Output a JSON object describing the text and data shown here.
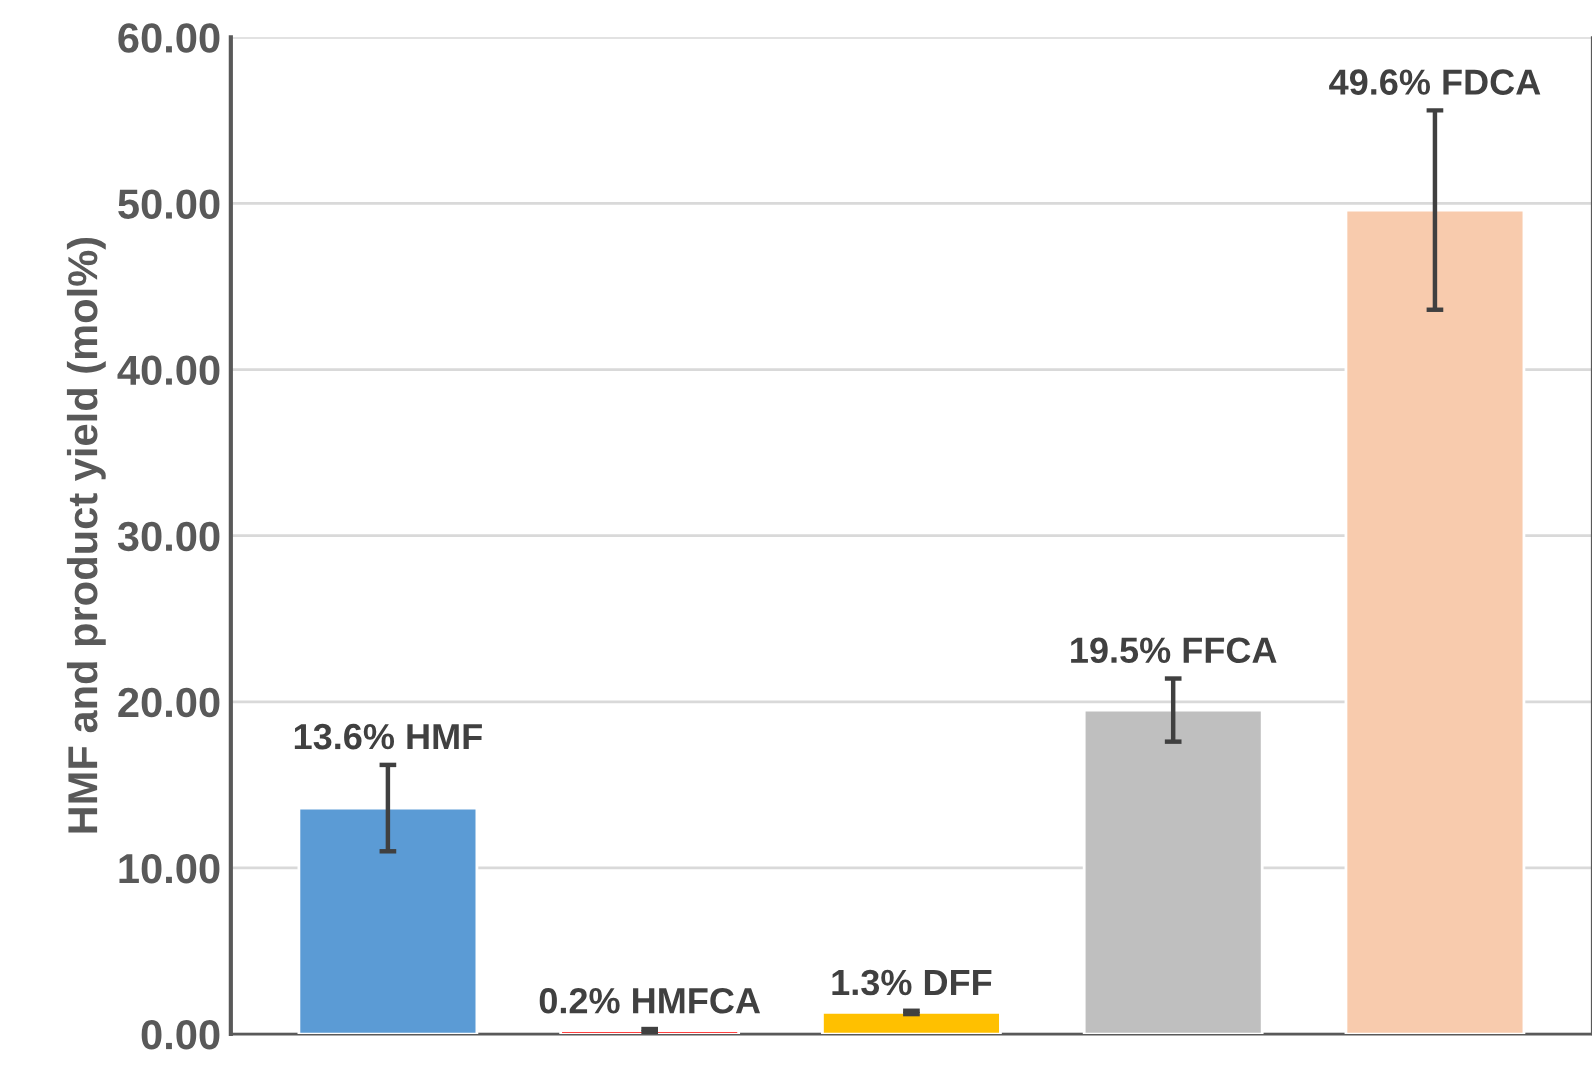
{
  "chart_data": {
    "type": "bar",
    "ylabel": "HMF and product yield (mol%)",
    "categories": [
      null,
      null,
      null,
      null,
      null
    ],
    "values": [
      13.6,
      0.2,
      1.3,
      19.5,
      49.6
    ],
    "colors": [
      "#5b9bd5",
      "#ff0000",
      "#ffc000",
      "#bfbfbf",
      "#f8cbad"
    ],
    "errors": [
      2.6,
      0.1,
      0.1,
      1.9,
      6.0
    ],
    "value_labels": [
      "13.6% HMF",
      "0.2% HMFCA",
      "1.3% DFF",
      "19.5% FFCA",
      "49.6% FDCA"
    ],
    "ylim": [
      0,
      60
    ],
    "yticks": [
      {
        "value": 0,
        "label": "0.00"
      },
      {
        "value": 10,
        "label": "10.00"
      },
      {
        "value": 20,
        "label": "20.00"
      },
      {
        "value": 30,
        "label": "30.00"
      },
      {
        "value": 40,
        "label": "40.00"
      },
      {
        "value": 50,
        "label": "50.00"
      },
      {
        "value": 60,
        "label": "60.00"
      }
    ],
    "grid": "y"
  }
}
